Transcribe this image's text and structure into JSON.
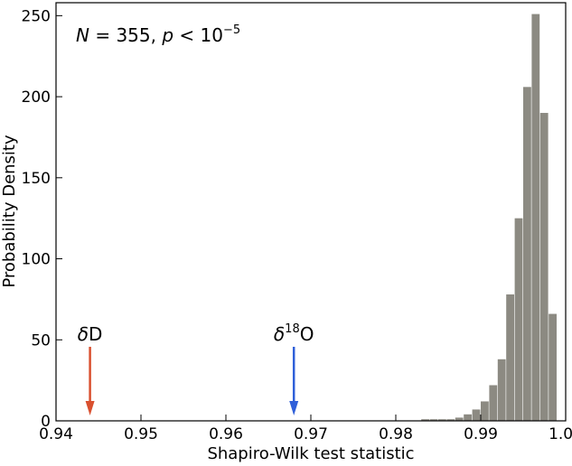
{
  "chart_data": {
    "type": "bar",
    "title": "",
    "xlabel": "Shapiro-Wilk test statistic",
    "ylabel": "Probability Density",
    "xlim": [
      0.94,
      1.0
    ],
    "ylim": [
      0,
      258
    ],
    "xticks": [
      "0.94",
      "0.95",
      "0.96",
      "0.97",
      "0.98",
      "0.99",
      "1.00"
    ],
    "yticks": [
      "0",
      "50",
      "100",
      "150",
      "200",
      "250"
    ],
    "grid": false,
    "bar_color": "#8c8a82",
    "bin_width": 0.001,
    "series": [
      {
        "x": [
          0.983,
          0.984,
          0.985,
          0.986,
          0.987,
          0.988,
          0.989,
          0.99,
          0.991,
          0.992,
          0.993,
          0.994,
          0.995,
          0.996,
          0.997,
          0.998
        ],
        "values": [
          1,
          1,
          1,
          1,
          2,
          4,
          7,
          12,
          22,
          38,
          78,
          125,
          206,
          251,
          190,
          66
        ]
      }
    ],
    "annotation": {
      "parts": [
        "N",
        " = 355, ",
        "p",
        " < 10",
        "−5"
      ]
    },
    "markers": [
      {
        "label_base": "δ",
        "label_sup": "",
        "label_tail": "D",
        "x": 0.944,
        "color": "#d9502f"
      },
      {
        "label_base": "δ",
        "label_sup": "18",
        "label_tail": "O",
        "x": 0.968,
        "color": "#2f5fd9"
      }
    ]
  }
}
